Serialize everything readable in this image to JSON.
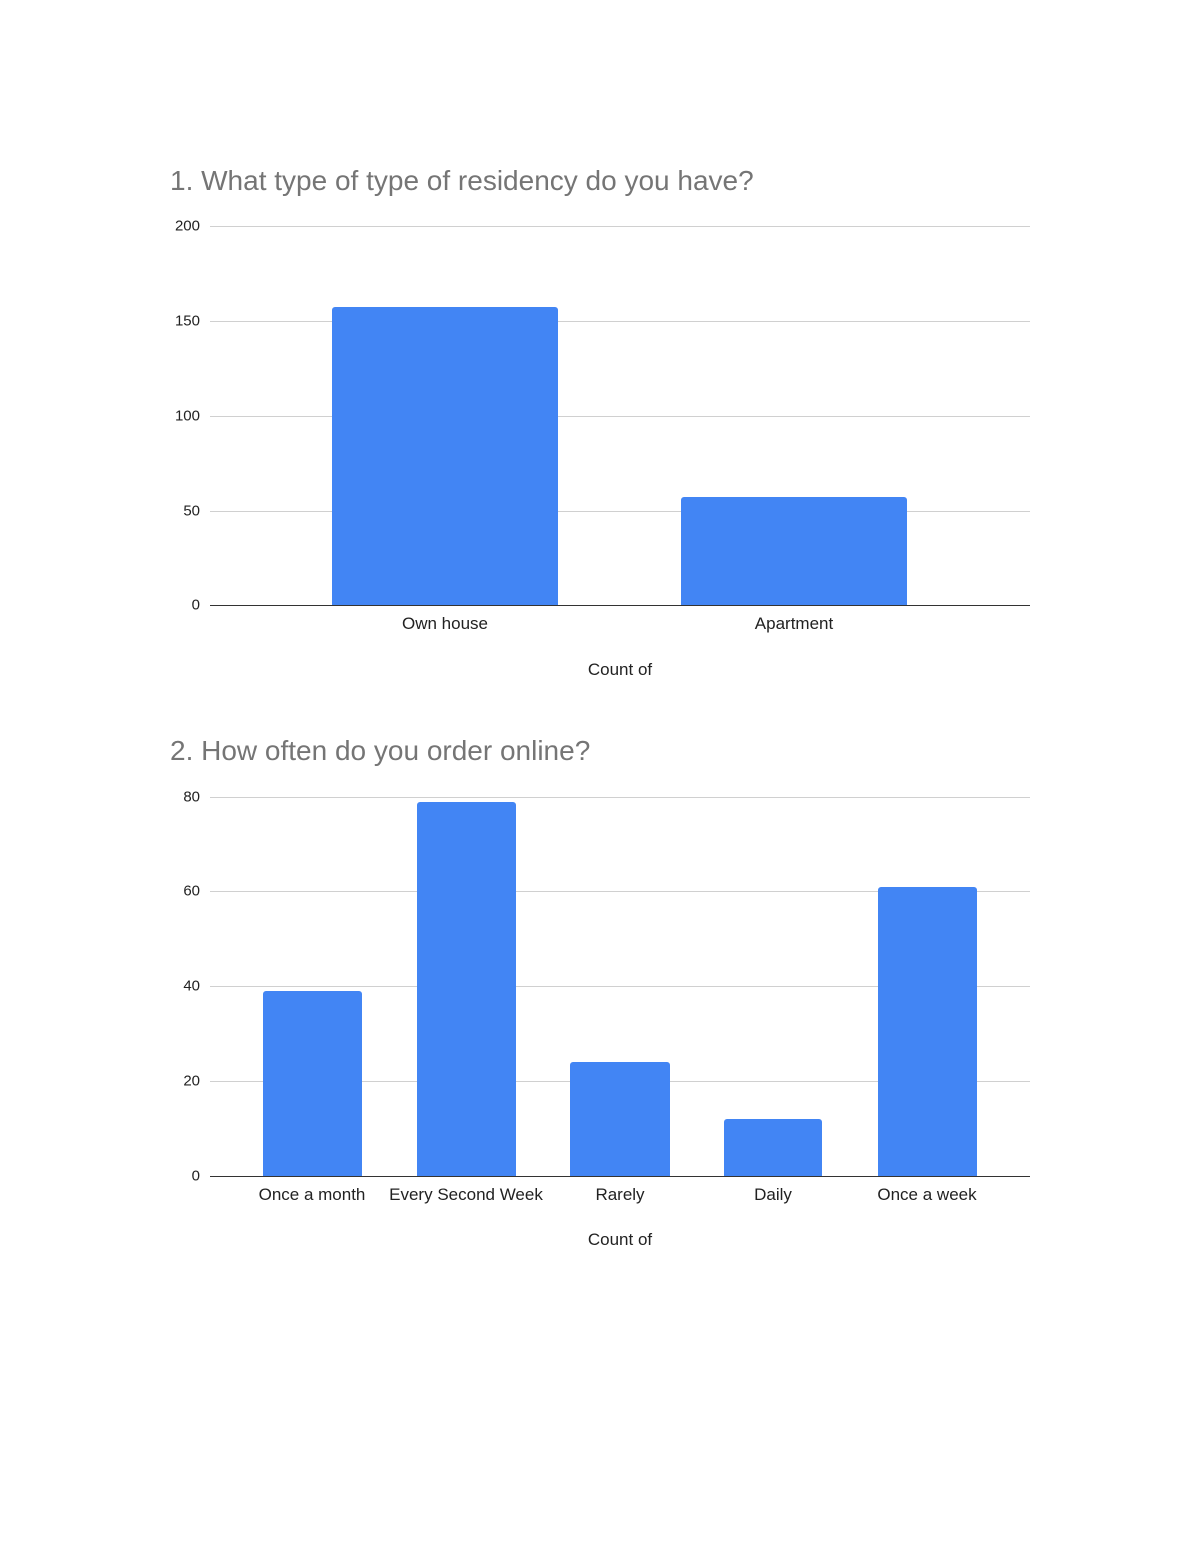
{
  "page": {
    "background": "#ffffff",
    "bar_color": "#4285f4"
  },
  "chart_data": [
    {
      "type": "bar",
      "title": "1. What type of type of residency do you have?",
      "categories": [
        "Own house",
        "Apartment"
      ],
      "values": [
        157,
        57
      ],
      "xlabel": "Count of",
      "ylabel": "",
      "ylim": [
        0,
        200
      ],
      "yticks": [
        "200",
        "150",
        "100",
        "50",
        "0"
      ],
      "grid": true,
      "legend": "none"
    },
    {
      "type": "bar",
      "title": "2. How often do you order online?",
      "categories": [
        "Once a month",
        "Every Second Week",
        "Rarely",
        "Daily",
        "Once a week"
      ],
      "values": [
        39,
        79,
        24,
        12,
        61
      ],
      "xlabel": "Count of",
      "ylabel": "",
      "ylim": [
        0,
        80
      ],
      "yticks": [
        "80",
        "60",
        "40",
        "20",
        "0"
      ],
      "grid": true,
      "legend": "none"
    }
  ]
}
